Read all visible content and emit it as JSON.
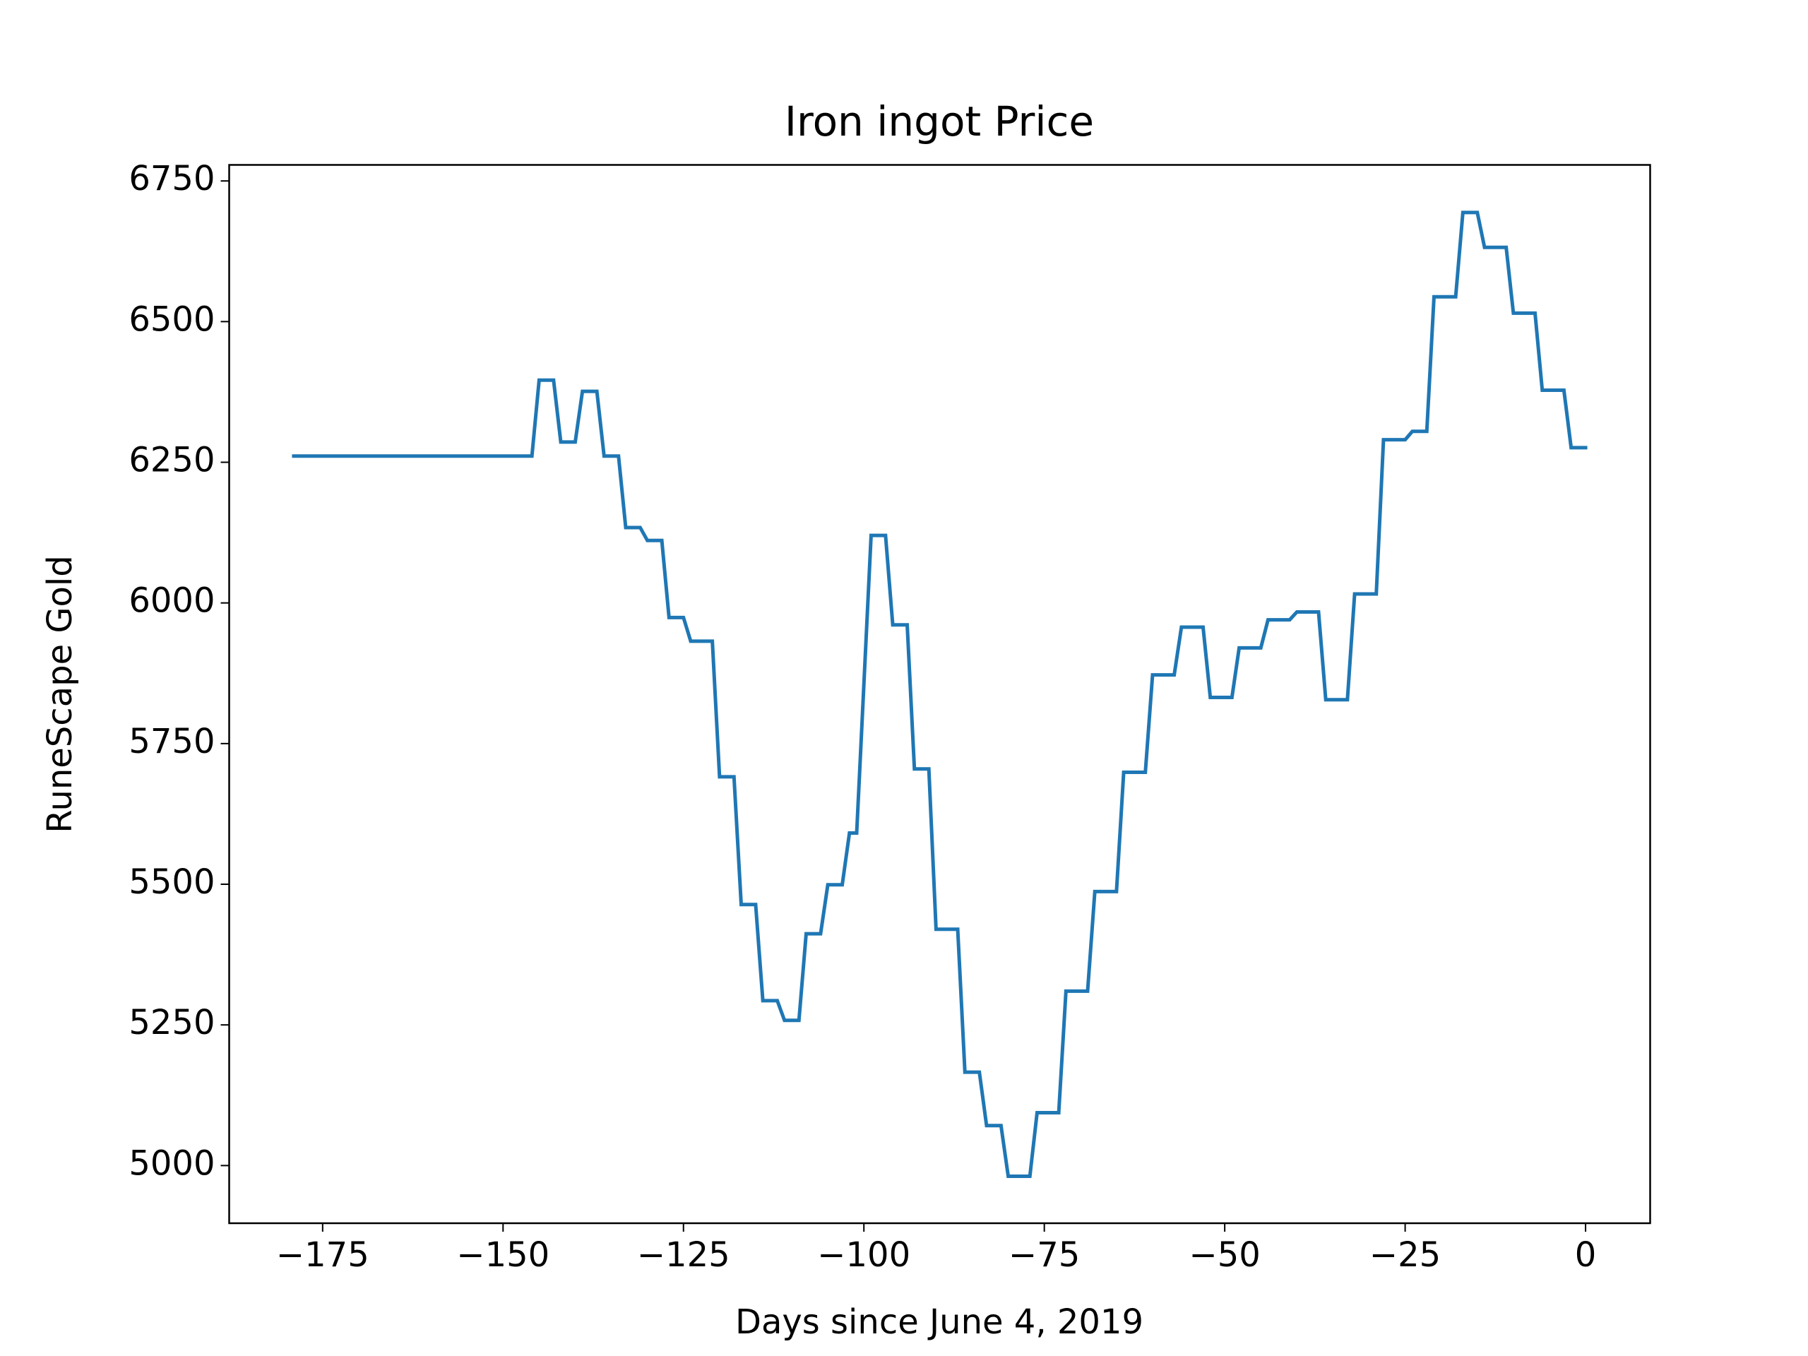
{
  "chart_data": {
    "type": "line",
    "title": "Iron ingot Price",
    "x_label": "Days since June 4, 2019",
    "y_label": "RuneScape Gold",
    "series": [
      {
        "name": "Iron ingot",
        "color": "#1f77b4",
        "x": [
          -179,
          -146,
          -145,
          -143,
          -142,
          -140,
          -139,
          -137,
          -136,
          -134,
          -133,
          -131,
          -130,
          -128,
          -127,
          -125,
          -124,
          -121,
          -120,
          -118,
          -117,
          -115,
          -114,
          -112,
          -111,
          -109,
          -108,
          -106,
          -105,
          -103,
          -102,
          -101,
          -99,
          -97,
          -96,
          -94,
          -93,
          -91,
          -90,
          -87,
          -86,
          -84,
          -83,
          -81,
          -80,
          -77,
          -76,
          -73,
          -72,
          -69,
          -68,
          -65,
          -64,
          -61,
          -60,
          -57,
          -56,
          -53,
          -52,
          -49,
          -48,
          -45,
          -44,
          -41,
          -40,
          -37,
          -36,
          -33,
          -32,
          -29,
          -28,
          -25,
          -24,
          -22,
          -21,
          -18,
          -17,
          -15,
          -14,
          -11,
          -10,
          -7,
          -6,
          -3,
          -2,
          0
        ],
        "values": [
          6261,
          6261,
          6396,
          6396,
          6286,
          6286,
          6376,
          6376,
          6261,
          6261,
          6134,
          6134,
          6111,
          6111,
          5974,
          5974,
          5932,
          5932,
          5691,
          5691,
          5464,
          5464,
          5293,
          5293,
          5258,
          5258,
          5412,
          5412,
          5499,
          5499,
          5591,
          5591,
          6120,
          6120,
          5961,
          5961,
          5705,
          5705,
          5420,
          5420,
          5166,
          5166,
          5071,
          5071,
          4981,
          4981,
          5094,
          5094,
          5310,
          5310,
          5487,
          5487,
          5699,
          5699,
          5872,
          5872,
          5957,
          5957,
          5832,
          5832,
          5920,
          5920,
          5970,
          5970,
          5984,
          5984,
          5828,
          5828,
          6016,
          6016,
          6290,
          6290,
          6305,
          6305,
          6544,
          6544,
          6694,
          6694,
          6632,
          6632,
          6515,
          6515,
          6378,
          6378,
          6276,
          6276
        ]
      }
    ],
    "xlim": [
      -187.95,
      8.95
    ],
    "ylim": [
      4897.5,
      6778.5
    ],
    "xticks": [
      {
        "value": -175,
        "label": "−175"
      },
      {
        "value": -150,
        "label": "−150"
      },
      {
        "value": -125,
        "label": "−125"
      },
      {
        "value": -100,
        "label": "−100"
      },
      {
        "value": -75,
        "label": "−75"
      },
      {
        "value": -50,
        "label": "−50"
      },
      {
        "value": -25,
        "label": "−25"
      },
      0
    ],
    "yticks": [
      5000,
      5250,
      5500,
      5750,
      6000,
      6250,
      6500,
      6750
    ]
  }
}
